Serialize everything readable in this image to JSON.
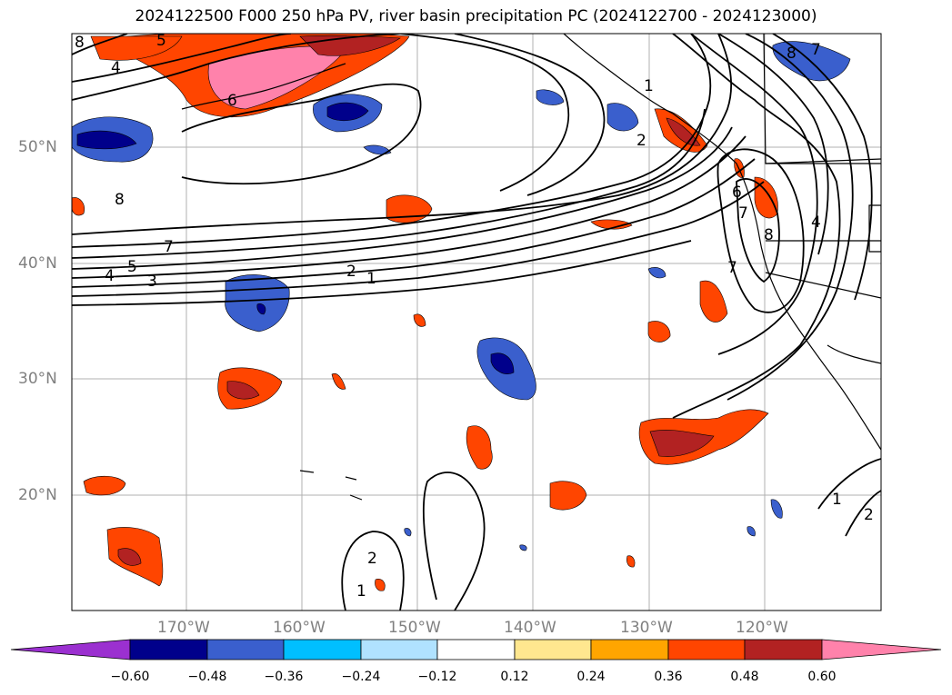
{
  "title": "2024122500 F000 250 hPa PV, river basin precipitation PC (2024122700 - 2024123000)",
  "lat_labels": [
    "50°N",
    "40°N",
    "30°N",
    "20°N"
  ],
  "lon_labels": [
    "170°W",
    "160°W",
    "150°W",
    "140°W",
    "130°W",
    "120°W"
  ],
  "colorbar": {
    "ticks": [
      "−0.60",
      "−0.48",
      "−0.36",
      "−0.24",
      "−0.12",
      "0.12",
      "0.24",
      "0.36",
      "0.48",
      "0.60"
    ],
    "colors": [
      "#9b30d0",
      "#00008b",
      "#3a5fcd",
      "#00bfff",
      "#b0e2ff",
      "#ffffff",
      "#ffe78f",
      "#ffa500",
      "#ff4500",
      "#b22222",
      "#ff82ab"
    ]
  },
  "contour_labels": [
    "5",
    "4",
    "6",
    "8",
    "7",
    "5",
    "4",
    "3",
    "2",
    "1",
    "2",
    "1",
    "8",
    "7",
    "6",
    "8",
    "7",
    "4",
    "2",
    "1",
    "1",
    "2",
    "7",
    "8"
  ]
}
